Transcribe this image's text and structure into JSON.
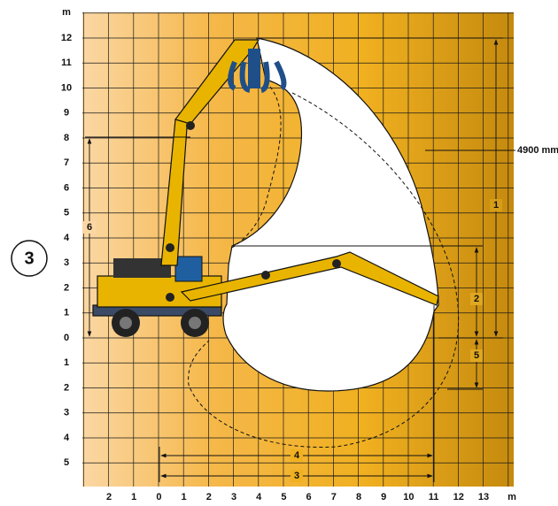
{
  "axis": {
    "y_unit": "m",
    "y_labels": [
      "12",
      "11",
      "10",
      "9",
      "8",
      "7",
      "6",
      "5",
      "4",
      "3",
      "2",
      "1",
      "0",
      "1",
      "2",
      "3",
      "4",
      "5"
    ],
    "x_labels": [
      "2",
      "1",
      "0",
      "1",
      "2",
      "3",
      "4",
      "5",
      "6",
      "7",
      "8",
      "9",
      "10",
      "11",
      "12",
      "13"
    ],
    "x_unit": "m"
  },
  "badge": "3",
  "dimensions": {
    "reach_height": "4900 mm",
    "d1": "1",
    "d2": "2",
    "d3": "3",
    "d4": "4",
    "d5": "5",
    "d6": "6"
  }
}
